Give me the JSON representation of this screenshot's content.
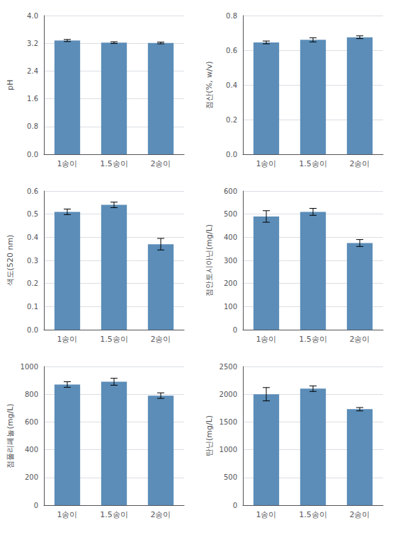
{
  "chart_data": [
    {
      "type": "bar",
      "ylabel": "pH",
      "categories": [
        "1송이",
        "1.5송이",
        "2송이"
      ],
      "values": [
        3.28,
        3.22,
        3.21
      ],
      "errors": [
        0.03,
        0.025,
        0.025
      ],
      "color": "#5B8DB8",
      "ylim": [
        0,
        4.0
      ],
      "yticks": [
        {
          "value": 0,
          "label": "0.0"
        },
        0.8,
        1.6,
        2.4,
        3.2,
        {
          "value": 4,
          "label": "4.0"
        }
      ],
      "grid": true
    },
    {
      "type": "bar",
      "ylabel": "점산(%, w/v)",
      "categories": [
        "1송이",
        "1.5송이",
        "2송이"
      ],
      "values": [
        0.645,
        0.66,
        0.675
      ],
      "errors": [
        0.008,
        0.012,
        0.008
      ],
      "color": "#5B8DB8",
      "ylim": [
        0,
        0.8
      ],
      "yticks": [
        {
          "value": 0,
          "label": "0.0"
        },
        0.2,
        0.4,
        0.6,
        0.8
      ],
      "grid": true
    },
    {
      "type": "bar",
      "ylabel": "색도(520 nm)",
      "categories": [
        "1송이",
        "1.5송이",
        "2송이"
      ],
      "values": [
        0.51,
        0.54,
        0.37
      ],
      "errors": [
        0.012,
        0.012,
        0.025
      ],
      "color": "#5B8DB8",
      "ylim": [
        0,
        0.6
      ],
      "yticks": [
        {
          "value": 0,
          "label": "0.0"
        },
        0.1,
        0.2,
        0.3,
        0.4,
        0.5,
        0.6
      ],
      "grid": true
    },
    {
      "type": "bar",
      "ylabel": "점안토시아닌(mg/L)",
      "categories": [
        "1송이",
        "1.5송이",
        "2송이"
      ],
      "values": [
        490,
        510,
        375
      ],
      "errors": [
        25,
        15,
        15
      ],
      "color": "#5B8DB8",
      "ylim": [
        0,
        600
      ],
      "yticks": [
        0,
        100,
        200,
        300,
        400,
        500,
        600
      ],
      "grid": true
    },
    {
      "type": "bar",
      "ylabel": "점폴리페놀(mg/L)",
      "categories": [
        "1송이",
        "1.5송이",
        "2송이"
      ],
      "values": [
        870,
        890,
        790
      ],
      "errors": [
        20,
        25,
        20
      ],
      "color": "#5B8DB8",
      "ylim": [
        0,
        1000
      ],
      "yticks": [
        0,
        200,
        400,
        600,
        800,
        1000
      ],
      "grid": true
    },
    {
      "type": "bar",
      "ylabel": "탄닌(mg/L)",
      "categories": [
        "1송이",
        "1.5송이",
        "2송이"
      ],
      "values": [
        2000,
        2100,
        1730
      ],
      "errors": [
        120,
        50,
        30
      ],
      "color": "#5B8DB8",
      "ylim": [
        0,
        2500
      ],
      "yticks": [
        0,
        500,
        1000,
        1500,
        2000,
        2500
      ],
      "grid": true
    }
  ]
}
